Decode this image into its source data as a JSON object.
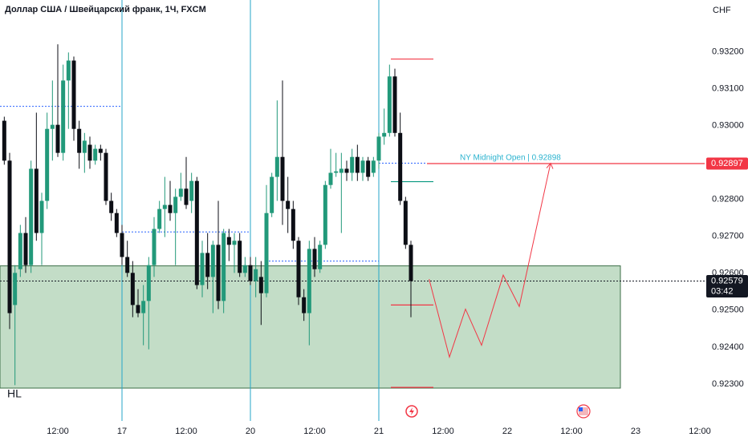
{
  "chart_data": {
    "type": "candlestick",
    "title": "Доллар США / Швейцарский франк, 1Ч, FXCM",
    "y_axis_label": "CHF",
    "up_color": "#22997a",
    "down_color": "#0c0e15",
    "xlim": [
      -22.8,
      108.9
    ],
    "ylim": [
      0.922,
      0.9334
    ],
    "xticks": [
      {
        "value": -12,
        "label": "12:00"
      },
      {
        "value": 0,
        "label": "17"
      },
      {
        "value": 12,
        "label": "12:00"
      },
      {
        "value": 24,
        "label": "20"
      },
      {
        "value": 36,
        "label": "12:00"
      },
      {
        "value": 48,
        "label": "21"
      },
      {
        "value": 60,
        "label": "12:00"
      },
      {
        "value": 72,
        "label": "22"
      },
      {
        "value": 84,
        "label": "12:00"
      },
      {
        "value": 96,
        "label": "23"
      },
      {
        "value": 108,
        "label": "12:00"
      }
    ],
    "yticks": [
      {
        "value": 0.932,
        "label": "0.93200"
      },
      {
        "value": 0.931,
        "label": "0.93100"
      },
      {
        "value": 0.93,
        "label": "0.93000"
      },
      {
        "value": 0.929,
        "label": "0.92900"
      },
      {
        "value": 0.928,
        "label": "0.92800"
      },
      {
        "value": 0.927,
        "label": "0.92700"
      },
      {
        "value": 0.926,
        "label": "0.92600"
      },
      {
        "value": 0.925,
        "label": "0.92500"
      },
      {
        "value": 0.924,
        "label": "0.92400"
      },
      {
        "value": 0.923,
        "label": "0.92300"
      }
    ],
    "x": [
      -22,
      -21,
      -20,
      -19,
      -18,
      -17,
      -16,
      -15,
      -14,
      -13,
      -12,
      -11,
      -10,
      -9,
      -8,
      -7,
      -6,
      -5,
      -4,
      -3,
      -2,
      -1,
      0,
      1,
      2,
      3,
      4,
      5,
      6,
      7,
      8,
      9,
      10,
      11,
      12,
      13,
      14,
      15,
      16,
      17,
      18,
      19,
      20,
      21,
      22,
      23,
      24,
      25,
      26,
      27,
      28,
      29,
      30,
      31,
      32,
      33,
      34,
      35,
      36,
      37,
      38,
      39,
      40,
      41,
      42,
      43,
      44,
      45,
      46,
      47,
      48,
      49,
      50,
      51,
      52,
      53,
      54
    ],
    "open": [
      0.93013,
      0.92905,
      0.92514,
      0.92611,
      0.92709,
      0.92622,
      0.92883,
      0.92709,
      0.92796,
      0.92991,
      0.93002,
      0.92926,
      0.93122,
      0.93176,
      0.92991,
      0.92926,
      0.92948,
      0.92905,
      0.92937,
      0.92926,
      0.92796,
      0.92763,
      0.92709,
      0.92644,
      0.92601,
      0.92514,
      0.92492,
      0.92525,
      0.92622,
      0.9272,
      0.92774,
      0.92785,
      0.92763,
      0.92807,
      0.92829,
      0.92796,
      0.9285,
      0.92568,
      0.92655,
      0.9259,
      0.92677,
      0.92525,
      0.92698,
      0.92677,
      0.92688,
      0.92601,
      0.92622,
      0.92579,
      0.9259,
      0.92546,
      0.92763,
      0.92861,
      0.92915,
      0.92796,
      0.92774,
      0.92688,
      0.92535,
      0.92492,
      0.92666,
      0.92611,
      0.92677,
      0.92839,
      0.92872,
      0.92872,
      0.92883,
      0.92872,
      0.92915,
      0.92872,
      0.92905,
      0.92872,
      0.92905,
      0.9297,
      0.9298,
      0.93133,
      0.9298,
      0.92796,
      0.92677
    ],
    "high": [
      0.93024,
      0.92926,
      0.92622,
      0.92731,
      0.92752,
      0.92905,
      0.93035,
      0.92818,
      0.93035,
      0.93122,
      0.9322,
      0.93165,
      0.93198,
      0.93187,
      0.93013,
      0.9298,
      0.9297,
      0.92948,
      0.92948,
      0.92937,
      0.92818,
      0.92774,
      0.92731,
      0.92688,
      0.92633,
      0.92557,
      0.92568,
      0.92644,
      0.92752,
      0.92796,
      0.92861,
      0.9285,
      0.92829,
      0.92872,
      0.92915,
      0.92872,
      0.92861,
      0.92688,
      0.92709,
      0.92688,
      0.92796,
      0.9272,
      0.9272,
      0.92709,
      0.92709,
      0.92644,
      0.92644,
      0.92644,
      0.92633,
      0.92839,
      0.92872,
      0.93068,
      0.93122,
      0.92861,
      0.92796,
      0.92698,
      0.92557,
      0.92688,
      0.92698,
      0.92688,
      0.9285,
      0.92937,
      0.92926,
      0.92926,
      0.92905,
      0.92937,
      0.92948,
      0.92915,
      0.92915,
      0.92915,
      0.9298,
      0.93046,
      0.93165,
      0.93154,
      0.93035,
      0.92807,
      0.92688
    ],
    "low": [
      0.92894,
      0.92449,
      0.92297,
      0.9259,
      0.92601,
      0.92601,
      0.92688,
      0.92622,
      0.92774,
      0.92905,
      0.92915,
      0.92905,
      0.92991,
      0.92959,
      0.92883,
      0.92872,
      0.92883,
      0.92894,
      0.92905,
      0.92785,
      0.92742,
      0.92698,
      0.92622,
      0.9259,
      0.92481,
      0.92481,
      0.92405,
      0.92394,
      0.9259,
      0.92709,
      0.92698,
      0.92742,
      0.92622,
      0.92796,
      0.92774,
      0.92763,
      0.92557,
      0.92535,
      0.92557,
      0.92492,
      0.92503,
      0.92492,
      0.92633,
      0.92601,
      0.9259,
      0.9259,
      0.92568,
      0.92535,
      0.9246,
      0.92535,
      0.92752,
      0.92796,
      0.92731,
      0.92709,
      0.92666,
      0.92514,
      0.92471,
      0.92405,
      0.9259,
      0.92601,
      0.92666,
      0.92829,
      0.92861,
      0.92709,
      0.9285,
      0.9285,
      0.9285,
      0.9285,
      0.9285,
      0.92861,
      0.92883,
      0.92948,
      0.9297,
      0.9297,
      0.92785,
      0.92666,
      0.92481
    ],
    "close": [
      0.92905,
      0.92492,
      0.92601,
      0.92709,
      0.92622,
      0.92883,
      0.92709,
      0.92796,
      0.92991,
      0.93002,
      0.92926,
      0.93122,
      0.93176,
      0.92991,
      0.92926,
      0.92959,
      0.92905,
      0.92937,
      0.92926,
      0.92796,
      0.92763,
      0.92709,
      0.92644,
      0.92601,
      0.92514,
      0.92492,
      0.92525,
      0.92622,
      0.9272,
      0.92774,
      0.92785,
      0.92763,
      0.92807,
      0.92829,
      0.92785,
      0.9285,
      0.92568,
      0.92655,
      0.9259,
      0.92677,
      0.92525,
      0.92709,
      0.92677,
      0.92688,
      0.92601,
      0.92622,
      0.92579,
      0.92611,
      0.92546,
      0.92763,
      0.92861,
      0.92915,
      0.92796,
      0.92774,
      0.92688,
      0.92535,
      0.92492,
      0.92666,
      0.92611,
      0.92677,
      0.92839,
      0.92872,
      0.92876,
      0.92883,
      0.92872,
      0.92915,
      0.92872,
      0.92905,
      0.92861,
      0.92905,
      0.9297,
      0.9298,
      0.93133,
      0.9298,
      0.92796,
      0.92677,
      0.92579
    ],
    "session_lines": [
      0,
      24,
      48
    ],
    "zone": {
      "x": [
        -22.8,
        93.15
      ],
      "y": [
        0.92289,
        0.9262
      ],
      "color": "#b9d7bd"
    },
    "levels": [
      {
        "x": [
          -22.8,
          0
        ],
        "price": 0.93052,
        "color": "#2962ff",
        "dashed": true
      },
      {
        "x": [
          0,
          24
        ],
        "price": 0.92712,
        "color": "#2962ff",
        "dashed": true
      },
      {
        "x": [
          27.45,
          48
        ],
        "price": 0.92633,
        "color": "#2962ff",
        "dashed": true
      },
      {
        "x": [
          48,
          57
        ],
        "price": 0.92898,
        "color": "#2962ff",
        "dashed": true
      },
      {
        "x": [
          57,
          108.9
        ],
        "price": 0.92897,
        "color": "#f23645",
        "dashed": false
      },
      {
        "x": [
          50.25,
          58.2
        ],
        "price": 0.9318,
        "color": "#f23645",
        "dashed": false
      },
      {
        "x": [
          50.25,
          58.2
        ],
        "price": 0.92848,
        "color": "#089981",
        "dashed": false
      },
      {
        "x": [
          50.25,
          58.2
        ],
        "price": 0.92514,
        "color": "#f23645",
        "dashed": false
      },
      {
        "x": [
          50.25,
          58.2
        ],
        "price": 0.92291,
        "color": "#f23645",
        "dashed": false
      },
      {
        "x": [
          -22.8,
          108.9
        ],
        "price": 0.92579,
        "color": "#131722",
        "dashed": true
      }
    ],
    "projection": {
      "x": [
        57.4,
        61.2,
        64.2,
        67.2,
        71.25,
        74.25,
        80.1
      ],
      "y": [
        0.92584,
        0.92373,
        0.92503,
        0.92405,
        0.92595,
        0.9251,
        0.92898
      ],
      "color": "#f23645"
    },
    "annotations": [
      "HL",
      "NY Midnight Open | 0.92898"
    ],
    "price_tags": [
      {
        "price": 0.92897,
        "color": "#f23645"
      },
      {
        "price": 0.92579,
        "color": "#131722",
        "countdown": "03:42"
      }
    ]
  }
}
